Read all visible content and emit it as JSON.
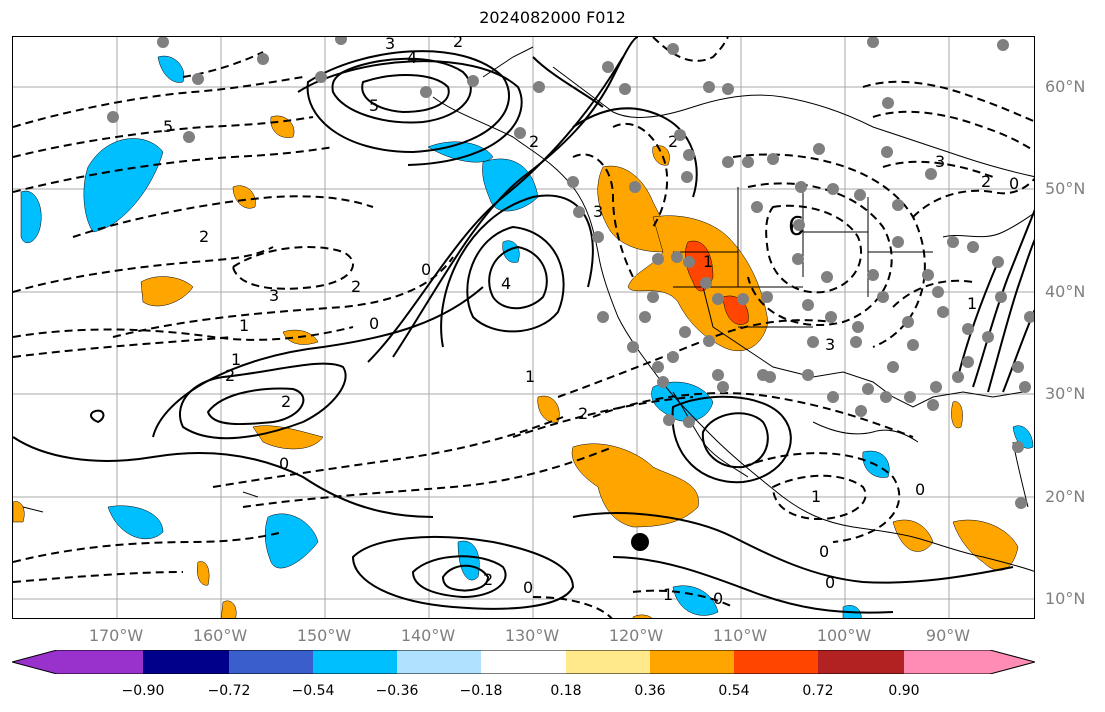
{
  "title": "2024082000 F012",
  "lat_labels": [
    "60°N",
    "50°N",
    "40°N",
    "30°N",
    "20°N",
    "10°N"
  ],
  "lon_labels": [
    "170°W",
    "160°W",
    "150°W",
    "140°W",
    "130°W",
    "120°W",
    "110°W",
    "100°W",
    "90°W"
  ],
  "colorbar": {
    "ticks": [
      "−0.90",
      "−0.72",
      "−0.54",
      "−0.36",
      "−0.18",
      "0.18",
      "0.36",
      "0.54",
      "0.72",
      "0.90"
    ],
    "colors": [
      "#9932cc",
      "#00008b",
      "#3a5fcd",
      "#00bfff",
      "#b0e2ff",
      "#ffffff",
      "#ffe98a",
      "#ffa500",
      "#ff4500",
      "#b22222",
      "#ff8cb4"
    ]
  },
  "contour_labels": {
    "l1": "5",
    "l2": "3",
    "l3": "4",
    "l4": "5",
    "l5": "2",
    "l6": "2",
    "l7": "3",
    "l8": "2",
    "l9": "0",
    "l10": "4",
    "l11": "2",
    "l12": "1",
    "l13": "0",
    "l14": "1",
    "l15": "2",
    "l16": "2",
    "l17": "0",
    "l18": "1",
    "l19": "2",
    "l20": "0",
    "l21": "1",
    "l22": "0",
    "l23": "0",
    "l24": "1",
    "l25": "0",
    "l26": "2",
    "l27": "3",
    "l28": "6",
    "l29": "3",
    "l30": "2",
    "l31": "1",
    "l32": "2",
    "l33": "0",
    "l34": "1",
    "l35": "0",
    "l36": "3"
  }
}
